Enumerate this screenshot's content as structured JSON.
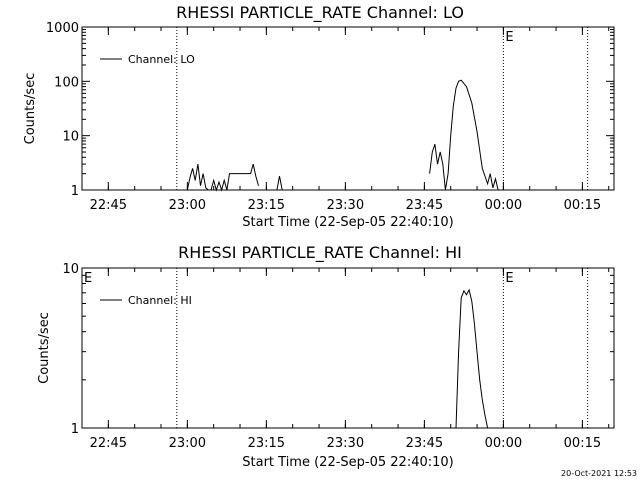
{
  "timestamp": "20-Oct-2021 12:53",
  "chart_data": [
    {
      "type": "line",
      "title": "RHESSI PARTICLE_RATE Channel: LO",
      "xlabel": "Start Time (22-Sep-05 22:40:10)",
      "ylabel": "Counts/sec",
      "yscale": "log",
      "ylim": [
        1,
        1000
      ],
      "xlim": [
        "22:40",
        "00:21"
      ],
      "xticks": [
        "22:45",
        "23:00",
        "23:15",
        "23:30",
        "23:45",
        "00:00",
        "00:15"
      ],
      "yticks": [
        "1",
        "10",
        "100",
        "1000"
      ],
      "legend": {
        "label": "Channel: LO",
        "placement": "top-left"
      },
      "markers": [
        {
          "time": "22:58",
          "label": ""
        },
        {
          "time": "00:00",
          "label": "E"
        },
        {
          "time": "00:16",
          "label": ""
        }
      ],
      "series": [
        {
          "name": "Channel: LO",
          "x": [
            "23:00",
            "23:00.5",
            "23:01",
            "23:01.5",
            "23:02",
            "23:02.5",
            "23:03",
            "23:03.5",
            "23:04",
            "23:04.5",
            "23:05",
            "23:05.5",
            "23:06",
            "23:06.5",
            "23:07",
            "23:07.5",
            "23:08",
            "23:09",
            "23:10",
            "23:11",
            "23:12",
            "23:12.5",
            "23:13",
            "23:13.5",
            "23:17",
            "23:17.5",
            "23:18",
            "23:46",
            "23:46.5",
            "23:47",
            "23:47.5",
            "23:48",
            "23:48.5",
            "23:49",
            "23:49.5",
            "23:50",
            "23:50.5",
            "23:51",
            "23:51.5",
            "23:52",
            "23:53",
            "23:54",
            "23:55",
            "23:56",
            "23:57",
            "23:57.5",
            "23:58",
            "23:58.5",
            "23:59"
          ],
          "values": [
            1,
            1.7,
            2.5,
            1.5,
            3,
            1.2,
            2,
            1.1,
            1,
            1,
            1.5,
            1,
            1.4,
            1,
            1.5,
            1,
            2,
            2,
            2,
            2,
            2,
            3,
            1.8,
            1.2,
            1,
            1.8,
            1,
            2,
            5,
            7,
            3,
            5,
            3,
            1,
            2,
            10,
            35,
            75,
            100,
            105,
            80,
            40,
            12,
            2.5,
            1.3,
            2,
            1.1,
            1.6,
            1
          ],
          "gaps_after": [
            23,
            26
          ]
        }
      ]
    },
    {
      "type": "line",
      "title": "RHESSI PARTICLE_RATE Channel: HI",
      "xlabel": "Start Time (22-Sep-05 22:40:10)",
      "ylabel": "Counts/sec",
      "yscale": "log",
      "ylim": [
        1,
        10
      ],
      "xlim": [
        "22:40",
        "00:21"
      ],
      "xticks": [
        "22:45",
        "23:00",
        "23:15",
        "23:30",
        "23:45",
        "00:00",
        "00:15"
      ],
      "yticks": [
        "1",
        "10"
      ],
      "legend": {
        "label": "Channel: HI",
        "placement": "top-left"
      },
      "markers": [
        {
          "time": "22:40",
          "label": "E"
        },
        {
          "time": "22:58",
          "label": ""
        },
        {
          "time": "00:00",
          "label": "E"
        },
        {
          "time": "00:16",
          "label": ""
        }
      ],
      "series": [
        {
          "name": "Channel: HI",
          "x": [
            "23:51",
            "23:51.5",
            "23:52",
            "23:52.5",
            "23:53",
            "23:53.5",
            "23:54",
            "23:54.5",
            "23:55",
            "23:55.5",
            "23:56",
            "23:56.5",
            "23:57"
          ],
          "values": [
            1,
            3,
            6.5,
            7.2,
            6.8,
            7.3,
            6.2,
            4.5,
            3,
            2,
            1.5,
            1.2,
            1
          ],
          "gaps_after": []
        }
      ]
    }
  ]
}
